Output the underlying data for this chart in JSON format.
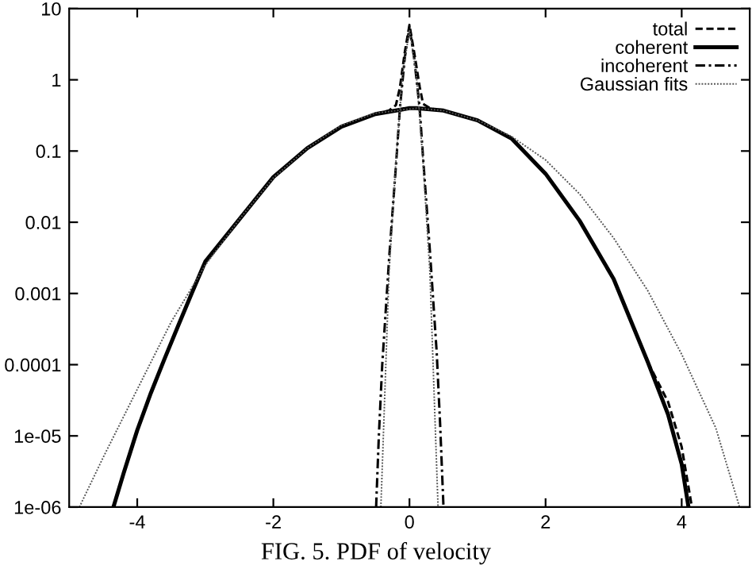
{
  "chart_data": {
    "type": "line",
    "log": "y",
    "xlim": [
      -5,
      5
    ],
    "ylim": [
      1e-06,
      10
    ],
    "xticks": [
      -4,
      -2,
      0,
      2,
      4
    ],
    "yticks": [
      {
        "value": 1e-06,
        "label": "1e-06"
      },
      {
        "value": 1e-05,
        "label": "1e-05"
      },
      {
        "value": 0.0001,
        "label": "0.0001"
      },
      {
        "value": 0.001,
        "label": "0.001"
      },
      {
        "value": 0.01,
        "label": "0.01"
      },
      {
        "value": 0.1,
        "label": "0.1"
      },
      {
        "value": 1,
        "label": "1"
      },
      {
        "value": 10,
        "label": "10"
      }
    ],
    "grid": false,
    "legend": "top right",
    "marker": "none",
    "annotations": [
      "FIG. 5. PDF of velocity"
    ],
    "series": [
      {
        "name": "total",
        "color": "#000000",
        "line_style": "dashed",
        "x": [
          -4.35,
          -4.2,
          -4.0,
          -3.8,
          -3.6,
          -3.4,
          -3.2,
          -3.0,
          -2.5,
          -2.0,
          -1.5,
          -1.0,
          -0.49,
          -0.4,
          -0.3,
          -0.2,
          -0.14,
          -0.07,
          0.0,
          0.07,
          0.15,
          0.2,
          0.3,
          0.4,
          0.5,
          1.0,
          1.5,
          2.0,
          2.5,
          3.0,
          3.5,
          3.8,
          4.0,
          4.15
        ],
        "values": [
          1e-06,
          3e-06,
          1.2e-05,
          4e-05,
          0.00012,
          0.00035,
          0.001,
          0.0028,
          0.011,
          0.043,
          0.11,
          0.22,
          0.33,
          0.35,
          0.37,
          0.44,
          0.78,
          2.4,
          5.9,
          2.4,
          0.8,
          0.46,
          0.4,
          0.38,
          0.37,
          0.27,
          0.15,
          0.048,
          0.0105,
          0.0016,
          0.00011,
          3e-05,
          7e-06,
          1e-06
        ]
      },
      {
        "name": "coherent",
        "color": "#000000",
        "line_style": "solid",
        "x": [
          -4.35,
          -4.2,
          -4.0,
          -3.8,
          -3.6,
          -3.4,
          -3.2,
          -3.0,
          -2.5,
          -2.0,
          -1.5,
          -1.0,
          -0.5,
          0.0,
          0.1,
          0.5,
          1.0,
          1.5,
          2.0,
          2.5,
          3.0,
          3.5,
          3.8,
          4.0,
          4.1
        ],
        "values": [
          1e-06,
          3e-06,
          1.2e-05,
          4e-05,
          0.00012,
          0.00035,
          0.001,
          0.0028,
          0.011,
          0.043,
          0.11,
          0.22,
          0.33,
          0.4,
          0.4,
          0.37,
          0.27,
          0.15,
          0.048,
          0.0105,
          0.0016,
          0.00011,
          2e-05,
          4e-06,
          1e-06
        ]
      },
      {
        "name": "incoherent",
        "color": "#000000",
        "line_style": "dashdot",
        "x": [
          -0.49,
          -0.45,
          -0.4,
          -0.3,
          -0.2,
          -0.14,
          -0.07,
          0.0,
          0.07,
          0.15,
          0.2,
          0.3,
          0.4,
          0.45,
          0.5
        ],
        "values": [
          1e-06,
          1e-05,
          0.0001,
          0.003,
          0.06,
          0.4,
          2,
          5.5,
          2,
          0.4,
          0.08,
          0.004,
          0.00015,
          1.5e-05,
          1e-06
        ]
      },
      {
        "name": "Gaussian fits",
        "color": "#555555",
        "line_style": "dotted",
        "x": [
          -4.85,
          -4.5,
          -4.0,
          -3.5,
          -3.0,
          -2.5,
          -2.0,
          -1.5,
          -1.0,
          -0.5,
          0.1,
          0.5,
          1.0,
          1.5,
          2.0,
          2.5,
          3.0,
          3.5,
          4.0,
          4.5,
          4.85
        ],
        "values": [
          1e-06,
          5e-06,
          4.5e-05,
          0.0004,
          0.0025,
          0.011,
          0.042,
          0.11,
          0.23,
          0.34,
          0.4,
          0.37,
          0.27,
          0.16,
          0.075,
          0.025,
          0.006,
          0.0011,
          0.00014,
          1.3e-05,
          1e-06
        ]
      },
      {
        "color": "#555555",
        "line_style": "dotted",
        "x": [
          -0.42,
          -0.3,
          -0.2,
          -0.1,
          0.0,
          0.1,
          0.2,
          0.3,
          0.42
        ],
        "values": [
          1e-06,
          0.002,
          0.07,
          1.2,
          5,
          1.2,
          0.07,
          0.002,
          1e-06
        ]
      }
    ]
  }
}
